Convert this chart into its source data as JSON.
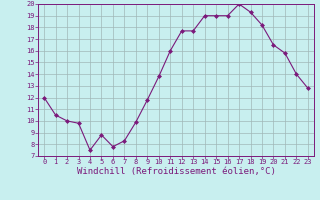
{
  "x": [
    0,
    1,
    2,
    3,
    4,
    5,
    6,
    7,
    8,
    9,
    10,
    11,
    12,
    13,
    14,
    15,
    16,
    17,
    18,
    19,
    20,
    21,
    22,
    23
  ],
  "y": [
    12,
    10.5,
    10,
    9.8,
    7.5,
    8.8,
    7.8,
    8.3,
    9.9,
    11.8,
    13.8,
    16,
    17.7,
    17.7,
    19,
    19,
    19,
    20,
    19.3,
    18.2,
    16.5,
    15.8,
    14,
    12.8
  ],
  "line_color": "#7b1a7b",
  "marker": "D",
  "marker_size": 2,
  "bg_color": "#c8efef",
  "grid_color": "#a0b8b8",
  "xlabel": "Windchill (Refroidissement éolien,°C)",
  "xlabel_color": "#7b1a7b",
  "tick_color": "#7b1a7b",
  "spine_color": "#7b1a7b",
  "ylim": [
    7,
    20
  ],
  "xlim": [
    -0.5,
    23.5
  ],
  "yticks": [
    7,
    8,
    9,
    10,
    11,
    12,
    13,
    14,
    15,
    16,
    17,
    18,
    19,
    20
  ],
  "xticks": [
    0,
    1,
    2,
    3,
    4,
    5,
    6,
    7,
    8,
    9,
    10,
    11,
    12,
    13,
    14,
    15,
    16,
    17,
    18,
    19,
    20,
    21,
    22,
    23
  ],
  "tick_fontsize": 5.0,
  "xlabel_fontsize": 6.5
}
